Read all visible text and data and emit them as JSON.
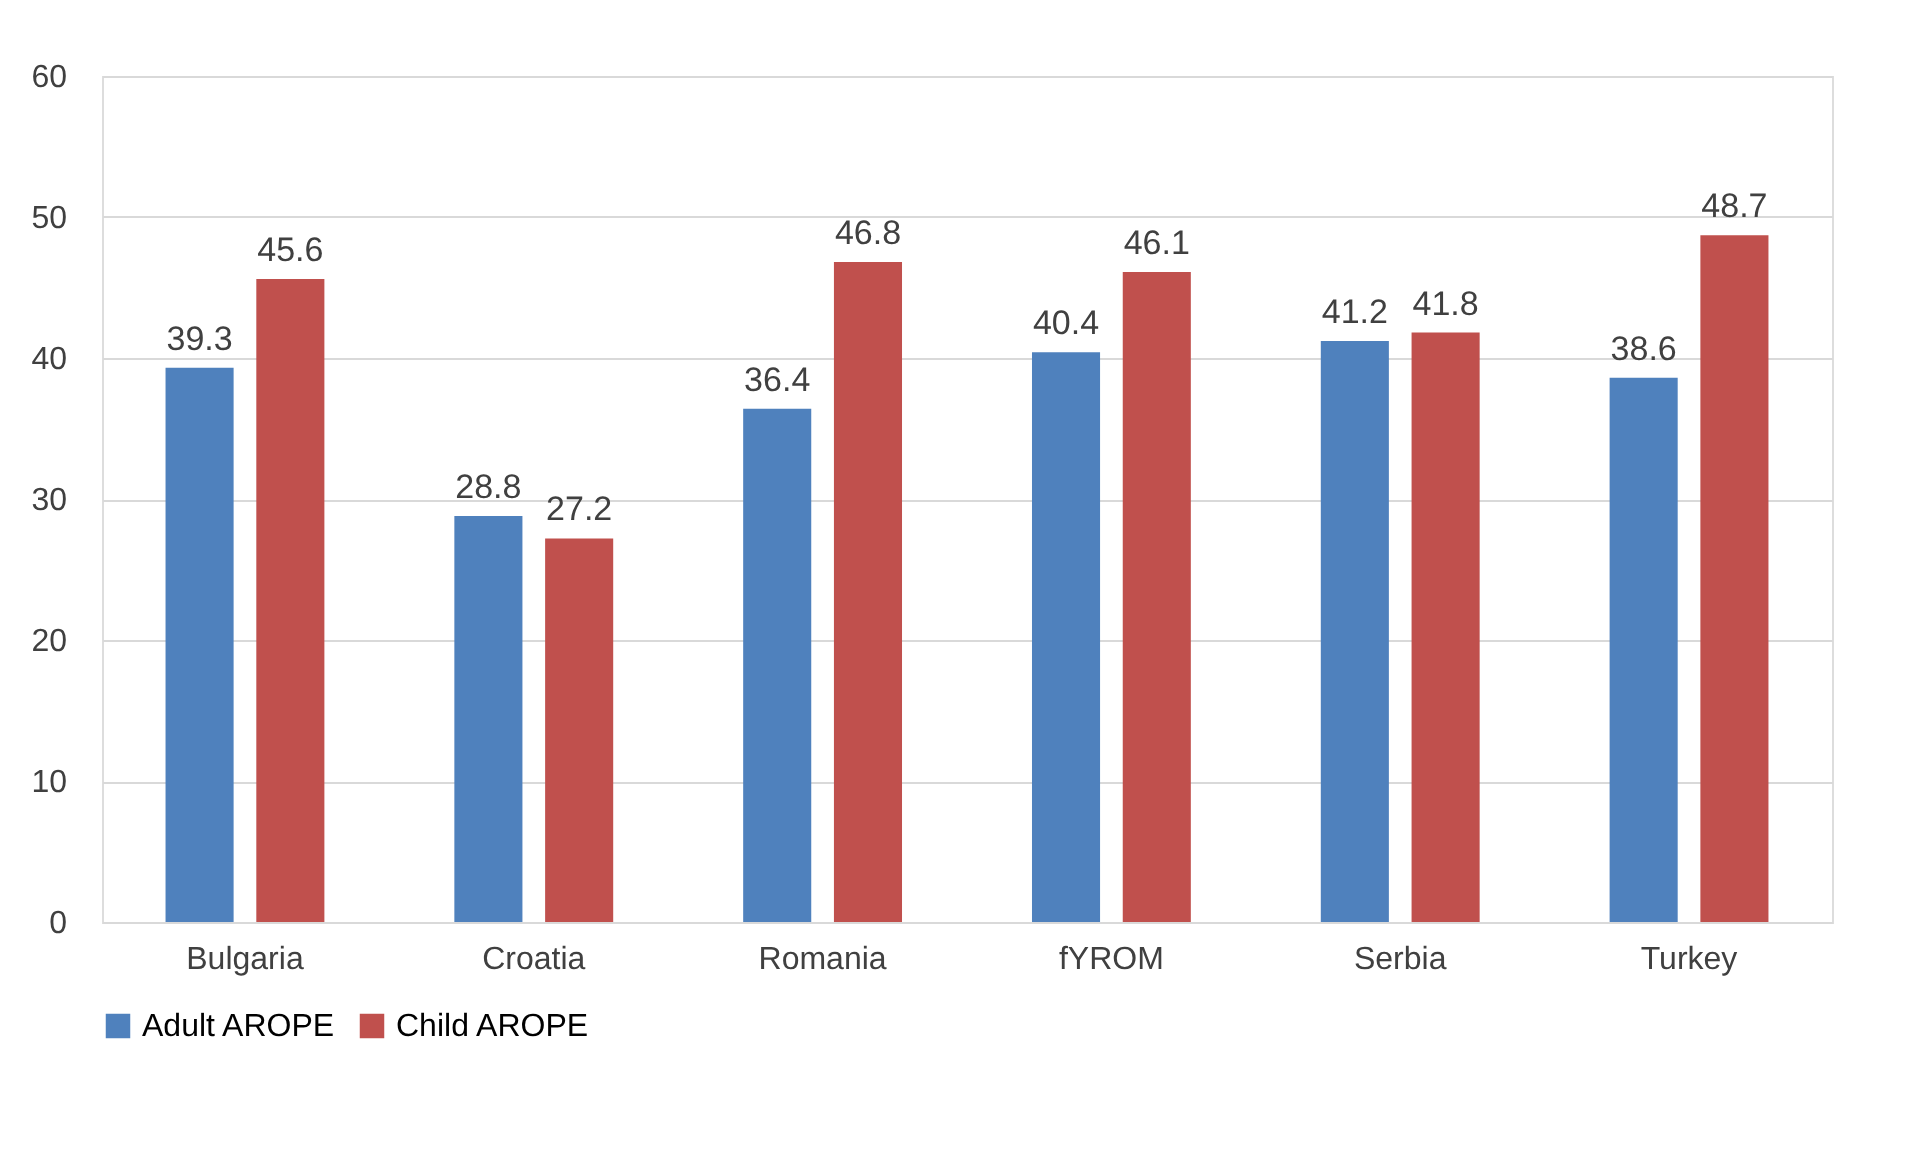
{
  "chart_data": {
    "type": "bar",
    "categories": [
      "Bulgaria",
      "Croatia",
      "Romania",
      "fYROM",
      "Serbia",
      "Turkey"
    ],
    "series": [
      {
        "name": "Adult AROPE",
        "color": "#4f81bd",
        "values": [
          39.3,
          28.8,
          36.4,
          40.4,
          41.2,
          38.6
        ]
      },
      {
        "name": "Child AROPE",
        "color": "#c0504d",
        "values": [
          45.6,
          27.2,
          46.8,
          46.1,
          41.8,
          48.7
        ]
      }
    ],
    "ylim": [
      0,
      60
    ],
    "yticks": [
      0,
      10,
      20,
      30,
      40,
      50,
      60
    ],
    "grid": "y",
    "legend": "bottom",
    "data_labels": true
  }
}
